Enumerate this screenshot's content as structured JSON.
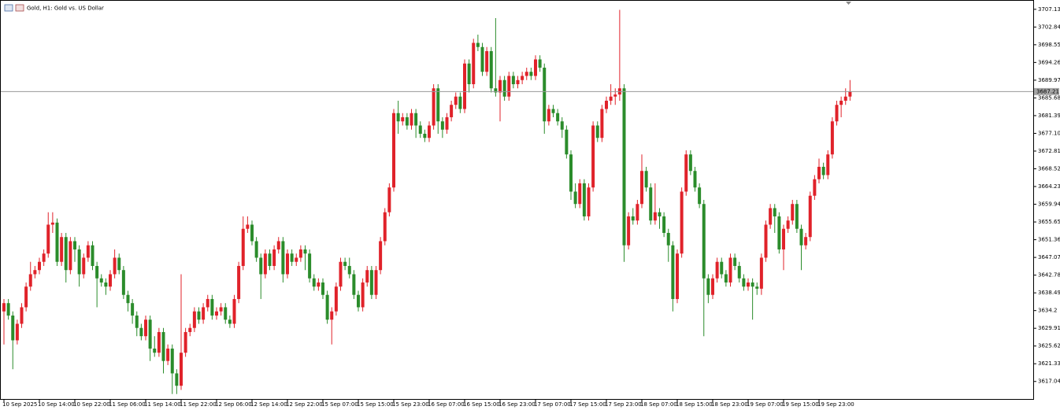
{
  "chart_data": {
    "type": "candlestick",
    "title": "Gold, H1: Gold vs. US Dollar",
    "bull_color": "#e0222a",
    "bear_color": "#2b8c2b",
    "ylim": [
      3612.8,
      3709.0
    ],
    "yticks": [
      3707.13,
      3702.84,
      3698.55,
      3694.26,
      3689.97,
      3685.68,
      3681.39,
      {
        "value": 3677.1,
        "label": "3677.10"
      },
      3672.81,
      3668.52,
      3664.23,
      3659.94,
      3655.65,
      3651.36,
      3647.07,
      3642.78,
      3638.49,
      3634.2,
      3629.91,
      3625.62,
      3621.33,
      3617.04
    ],
    "xticks": [
      {
        "value": 0,
        "label": "10 Sep 2025"
      },
      {
        "value": 8,
        "label": "10 Sep 14:00"
      },
      {
        "value": 16,
        "label": "10 Sep 22:00"
      },
      {
        "value": 24,
        "label": "11 Sep 06:00"
      },
      {
        "value": 32,
        "label": "11 Sep 14:00"
      },
      {
        "value": 40,
        "label": "11 Sep 22:00"
      },
      {
        "value": 48,
        "label": "12 Sep 06:00"
      },
      {
        "value": 56,
        "label": "12 Sep 14:00"
      },
      {
        "value": 64,
        "label": "12 Sep 22:00"
      },
      {
        "value": 72,
        "label": "15 Sep 07:00"
      },
      {
        "value": 80,
        "label": "15 Sep 15:00"
      },
      {
        "value": 88,
        "label": "15 Sep 23:00"
      },
      {
        "value": 96,
        "label": "16 Sep 07:00"
      },
      {
        "value": 104,
        "label": "16 Sep 15:00"
      },
      {
        "value": 112,
        "label": "16 Sep 23:00"
      },
      {
        "value": 120,
        "label": "17 Sep 07:00"
      },
      {
        "value": 128,
        "label": "17 Sep 15:00"
      },
      {
        "value": 136,
        "label": "17 Sep 23:00"
      },
      {
        "value": 144,
        "label": "18 Sep 07:00"
      },
      {
        "value": 152,
        "label": "18 Sep 15:00"
      },
      {
        "value": 160,
        "label": "18 Sep 23:00"
      },
      {
        "value": 168,
        "label": "19 Sep 07:00"
      },
      {
        "value": 176,
        "label": "19 Sep 15:00"
      },
      {
        "value": 184,
        "label": "19 Sep 23:00"
      }
    ],
    "current_price": 3687.21,
    "ohlc": [
      [
        3634,
        3637,
        3626,
        3636
      ],
      [
        3636,
        3637,
        3632,
        3633
      ],
      [
        3633,
        3634,
        3620,
        3627
      ],
      [
        3627,
        3632,
        3626,
        3631
      ],
      [
        3631,
        3636,
        3630,
        3635
      ],
      [
        3635,
        3641,
        3634,
        3640
      ],
      [
        3640,
        3646,
        3639,
        3643
      ],
      [
        3643,
        3645,
        3642,
        3644
      ],
      [
        3644,
        3647,
        3643,
        3646
      ],
      [
        3646,
        3649,
        3645,
        3648
      ],
      [
        3648,
        3658,
        3647,
        3655
      ],
      [
        3655,
        3658,
        3653,
        3655.5
      ],
      [
        3655.5,
        3656.5,
        3645,
        3646
      ],
      [
        3646,
        3653,
        3645,
        3652
      ],
      [
        3652,
        3653,
        3641,
        3644
      ],
      [
        3644,
        3652,
        3643,
        3651
      ],
      [
        3651,
        3652,
        3646,
        3649
      ],
      [
        3649,
        3650,
        3640,
        3643
      ],
      [
        3643,
        3648,
        3642,
        3647
      ],
      [
        3647,
        3651,
        3646,
        3650
      ],
      [
        3650,
        3651,
        3644,
        3645
      ],
      [
        3645,
        3646,
        3635,
        3642
      ],
      [
        3642,
        3643,
        3640,
        3641
      ],
      [
        3641,
        3642,
        3638,
        3640
      ],
      [
        3640,
        3644,
        3639,
        3643
      ],
      [
        3643,
        3649,
        3642,
        3647
      ],
      [
        3647,
        3648,
        3643,
        3644
      ],
      [
        3644,
        3645,
        3637,
        3638
      ],
      [
        3638,
        3639,
        3634,
        3636
      ],
      [
        3636,
        3637,
        3631,
        3633
      ],
      [
        3633,
        3634,
        3628,
        3630
      ],
      [
        3630,
        3631,
        3627,
        3628
      ],
      [
        3628,
        3633,
        3627,
        3632
      ],
      [
        3632,
        3633,
        3622,
        3625
      ],
      [
        3625,
        3628,
        3623,
        3624
      ],
      [
        3624,
        3630,
        3623,
        3629
      ],
      [
        3629,
        3630,
        3619,
        3622
      ],
      [
        3622,
        3626,
        3621,
        3625
      ],
      [
        3625,
        3626,
        3614,
        3619
      ],
      [
        3619,
        3620,
        3614,
        3616
      ],
      [
        3616,
        3643,
        3615,
        3624
      ],
      [
        3624,
        3630,
        3623,
        3629
      ],
      [
        3629,
        3631,
        3628,
        3630
      ],
      [
        3630,
        3635,
        3629,
        3634
      ],
      [
        3634,
        3635,
        3631,
        3632
      ],
      [
        3632,
        3636,
        3631,
        3635
      ],
      [
        3635,
        3638,
        3634,
        3637
      ],
      [
        3637,
        3638,
        3632,
        3633
      ],
      [
        3633,
        3635,
        3632,
        3634
      ],
      [
        3634,
        3636,
        3633,
        3635
      ],
      [
        3635,
        3636,
        3631,
        3632
      ],
      [
        3632,
        3633,
        3630,
        3631
      ],
      [
        3631,
        3638,
        3630,
        3637
      ],
      [
        3637,
        3646,
        3636,
        3645
      ],
      [
        3645,
        3657,
        3644,
        3654
      ],
      [
        3654,
        3657,
        3653,
        3655
      ],
      [
        3655,
        3656,
        3650,
        3651
      ],
      [
        3651,
        3652,
        3646,
        3647
      ],
      [
        3647,
        3648,
        3637,
        3643
      ],
      [
        3643,
        3649,
        3642,
        3648
      ],
      [
        3648,
        3649,
        3644,
        3645
      ],
      [
        3645,
        3650,
        3644,
        3649
      ],
      [
        3649,
        3652,
        3648,
        3651
      ],
      [
        3651,
        3652,
        3641,
        3643
      ],
      [
        3643,
        3649,
        3642,
        3648
      ],
      [
        3648,
        3649,
        3645,
        3646
      ],
      [
        3646,
        3648,
        3645,
        3647
      ],
      [
        3647,
        3650,
        3646,
        3649
      ],
      [
        3649,
        3650,
        3644,
        3648
      ],
      [
        3648,
        3649,
        3641,
        3642
      ],
      [
        3642,
        3643,
        3639,
        3640
      ],
      [
        3640,
        3642,
        3639,
        3641
      ],
      [
        3641,
        3642,
        3637,
        3638
      ],
      [
        3638,
        3639,
        3631,
        3632
      ],
      [
        3632,
        3635,
        3626,
        3634
      ],
      [
        3634,
        3641,
        3633,
        3640
      ],
      [
        3640,
        3647,
        3639,
        3646
      ],
      [
        3646,
        3647,
        3644,
        3645
      ],
      [
        3645,
        3647,
        3642,
        3643
      ],
      [
        3643,
        3644,
        3637,
        3638
      ],
      [
        3638,
        3639,
        3634,
        3635
      ],
      [
        3635,
        3642,
        3634,
        3641
      ],
      [
        3641,
        3645,
        3640,
        3644
      ],
      [
        3644,
        3645,
        3637,
        3638
      ],
      [
        3638,
        3645,
        3637,
        3644
      ],
      [
        3644,
        3652,
        3643,
        3651
      ],
      [
        3651,
        3659,
        3650,
        3658
      ],
      [
        3658,
        3665,
        3657,
        3664
      ],
      [
        3664,
        3683,
        3663,
        3682
      ],
      [
        3682,
        3685,
        3677,
        3680
      ],
      [
        3680,
        3682,
        3679,
        3681
      ],
      [
        3681,
        3682,
        3678,
        3679
      ],
      [
        3679,
        3683,
        3678,
        3682
      ],
      [
        3682,
        3683,
        3676,
        3679
      ],
      [
        3679,
        3680,
        3676,
        3677
      ],
      [
        3677,
        3678,
        3675,
        3676
      ],
      [
        3676,
        3680,
        3675,
        3679
      ],
      [
        3679,
        3689,
        3678,
        3688
      ],
      [
        3688,
        3689,
        3677,
        3680
      ],
      [
        3680,
        3681,
        3676,
        3678
      ],
      [
        3678,
        3682,
        3677,
        3681
      ],
      [
        3681,
        3685,
        3680,
        3684
      ],
      [
        3684,
        3687,
        3683,
        3686
      ],
      [
        3686,
        3687,
        3682,
        3683
      ],
      [
        3683,
        3695,
        3682,
        3694
      ],
      [
        3694,
        3695,
        3687,
        3689
      ],
      [
        3689,
        3700,
        3688,
        3699
      ],
      [
        3699,
        3701,
        3697,
        3698
      ],
      [
        3698,
        3699,
        3691,
        3692
      ],
      [
        3692,
        3698,
        3691,
        3697
      ],
      [
        3697,
        3698,
        3687,
        3688
      ],
      [
        3688,
        3705,
        3686,
        3687
      ],
      [
        3687,
        3691,
        3680,
        3690
      ],
      [
        3690,
        3691,
        3685,
        3686
      ],
      [
        3686,
        3692,
        3685,
        3691
      ],
      [
        3691,
        3692,
        3688,
        3689
      ],
      [
        3689,
        3691,
        3688,
        3690
      ],
      [
        3690,
        3692,
        3689,
        3691
      ],
      [
        3691,
        3693,
        3690,
        3692
      ],
      [
        3692,
        3693,
        3690,
        3691
      ],
      [
        3691,
        3696,
        3690,
        3695
      ],
      [
        3695,
        3696,
        3692,
        3693
      ],
      [
        3693,
        3694,
        3677,
        3680
      ],
      [
        3680,
        3684,
        3679,
        3683
      ],
      [
        3683,
        3684,
        3681,
        3682
      ],
      [
        3682,
        3683,
        3679,
        3680
      ],
      [
        3680,
        3681,
        3676,
        3678
      ],
      [
        3678,
        3679,
        3671,
        3672
      ],
      [
        3672,
        3673,
        3661,
        3663
      ],
      [
        3663,
        3665,
        3659,
        3660
      ],
      [
        3660,
        3666,
        3659,
        3665
      ],
      [
        3665,
        3666,
        3656,
        3657
      ],
      [
        3657,
        3665,
        3656,
        3664
      ],
      [
        3664,
        3680,
        3663,
        3679
      ],
      [
        3679,
        3680,
        3675,
        3676
      ],
      [
        3676,
        3684,
        3675,
        3683
      ],
      [
        3683,
        3686,
        3682,
        3685
      ],
      [
        3685,
        3689,
        3684,
        3686
      ],
      [
        3686,
        3688,
        3684,
        3686.5
      ],
      [
        3686.5,
        3707,
        3685,
        3688
      ],
      [
        3688,
        3689,
        3646,
        3650
      ],
      [
        3650,
        3658,
        3649,
        3657
      ],
      [
        3657,
        3659,
        3655,
        3656
      ],
      [
        3656,
        3661,
        3655,
        3660
      ],
      [
        3660,
        3672,
        3659,
        3668
      ],
      [
        3668,
        3669,
        3663,
        3664
      ],
      [
        3664,
        3665,
        3655,
        3656
      ],
      [
        3656,
        3665,
        3655,
        3658
      ],
      [
        3658,
        3659,
        3654,
        3657
      ],
      [
        3657,
        3658,
        3652,
        3653
      ],
      [
        3653,
        3654,
        3646,
        3650
      ],
      [
        3650,
        3651,
        3634,
        3637
      ],
      [
        3637,
        3649,
        3636,
        3648
      ],
      [
        3648,
        3664,
        3647,
        3663
      ],
      [
        3663,
        3673,
        3662,
        3672
      ],
      [
        3672,
        3673,
        3667,
        3668
      ],
      [
        3668,
        3669,
        3663,
        3664
      ],
      [
        3664,
        3665,
        3659,
        3660
      ],
      [
        3660,
        3661,
        3628,
        3642
      ],
      [
        3642,
        3643,
        3636,
        3638
      ],
      [
        3638,
        3643,
        3637,
        3642
      ],
      [
        3642,
        3647,
        3641,
        3646
      ],
      [
        3646,
        3647,
        3642,
        3643
      ],
      [
        3643,
        3644,
        3640,
        3641
      ],
      [
        3641,
        3648,
        3640,
        3647
      ],
      [
        3647,
        3648,
        3644,
        3645
      ],
      [
        3645,
        3646,
        3641,
        3642
      ],
      [
        3642,
        3643,
        3639,
        3640
      ],
      [
        3640,
        3642,
        3639,
        3641
      ],
      [
        3641,
        3642,
        3632,
        3640
      ],
      [
        3640,
        3641,
        3638,
        3639.5
      ],
      [
        3639.5,
        3648,
        3638,
        3647
      ],
      [
        3647,
        3656,
        3646,
        3655
      ],
      [
        3655,
        3660,
        3654,
        3659
      ],
      [
        3659,
        3660,
        3653,
        3657
      ],
      [
        3657,
        3658,
        3648,
        3649
      ],
      [
        3649,
        3655,
        3644,
        3654
      ],
      [
        3654,
        3657,
        3653,
        3656
      ],
      [
        3656,
        3661,
        3655,
        3660
      ],
      [
        3660,
        3661,
        3653,
        3654
      ],
      [
        3654,
        3655,
        3644,
        3650
      ],
      [
        3650,
        3653,
        3649,
        3652
      ],
      [
        3652,
        3663,
        3651,
        3662
      ],
      [
        3662,
        3667,
        3661,
        3666
      ],
      [
        3666,
        3671,
        3665,
        3669
      ],
      [
        3669,
        3670,
        3666,
        3667
      ],
      [
        3667,
        3673,
        3666,
        3672
      ],
      [
        3672,
        3681,
        3671,
        3680
      ],
      [
        3680,
        3685,
        3679,
        3684
      ],
      [
        3684,
        3686,
        3681,
        3685
      ],
      [
        3685,
        3688,
        3684,
        3686
      ],
      [
        3686,
        3690,
        3685,
        3687.21
      ]
    ]
  }
}
